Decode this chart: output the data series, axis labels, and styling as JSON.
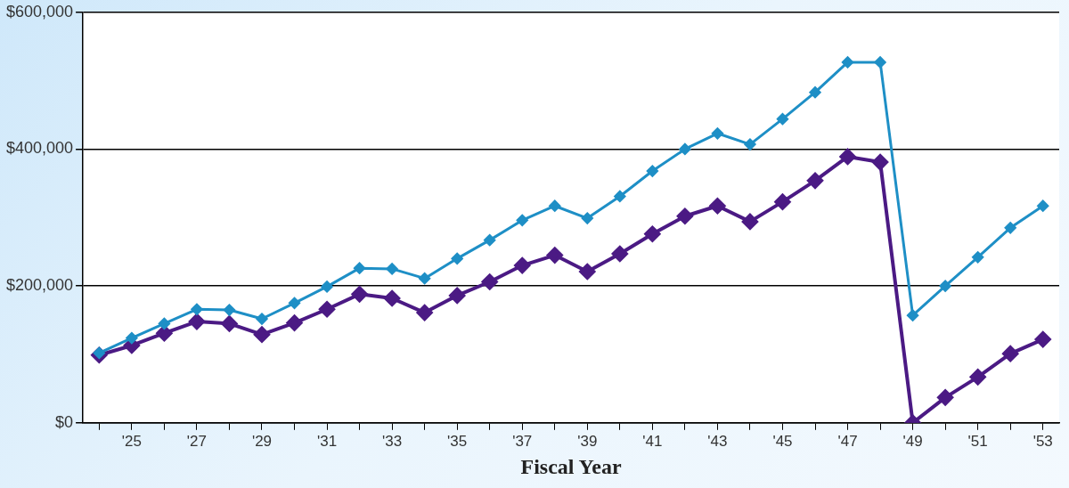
{
  "chart_data": {
    "type": "line",
    "xlabel": "Fiscal Year",
    "categories": [
      null,
      "'25",
      null,
      "'27",
      null,
      "'29",
      null,
      "'31",
      null,
      "'33",
      null,
      "'35",
      null,
      "'37",
      null,
      "'39",
      null,
      "'41",
      null,
      "'43",
      null,
      "'45",
      null,
      "'47",
      null,
      "'49",
      null,
      "'51",
      null,
      "'53"
    ],
    "series": [
      {
        "color": "#1e8fc6",
        "values": [
          102000,
          124000,
          145000,
          166000,
          165000,
          152000,
          175000,
          199000,
          226000,
          225000,
          211000,
          240000,
          267000,
          296000,
          317000,
          299000,
          331000,
          368000,
          400000,
          423000,
          407000,
          444000,
          483000,
          527000,
          527000,
          157000,
          200000,
          242000,
          285000,
          317000
        ]
      },
      {
        "color": "#4b1a84",
        "values": [
          99000,
          113000,
          131000,
          148000,
          145000,
          129000,
          146000,
          166000,
          188000,
          182000,
          161000,
          186000,
          206000,
          230000,
          245000,
          221000,
          247000,
          276000,
          302000,
          317000,
          294000,
          323000,
          354000,
          389000,
          381000,
          0,
          37000,
          67000,
          101000,
          122000
        ]
      }
    ],
    "ylim": [
      0,
      600000
    ],
    "yticks": [
      {
        "value": 0,
        "label": "$0"
      },
      {
        "value": 200000,
        "label": "$200,000"
      },
      {
        "value": 400000,
        "label": "$400,000"
      },
      {
        "value": 600000,
        "label": "$600,000"
      }
    ],
    "grid": "y",
    "legend": false,
    "marker": "diamond",
    "line_style": "solid"
  }
}
